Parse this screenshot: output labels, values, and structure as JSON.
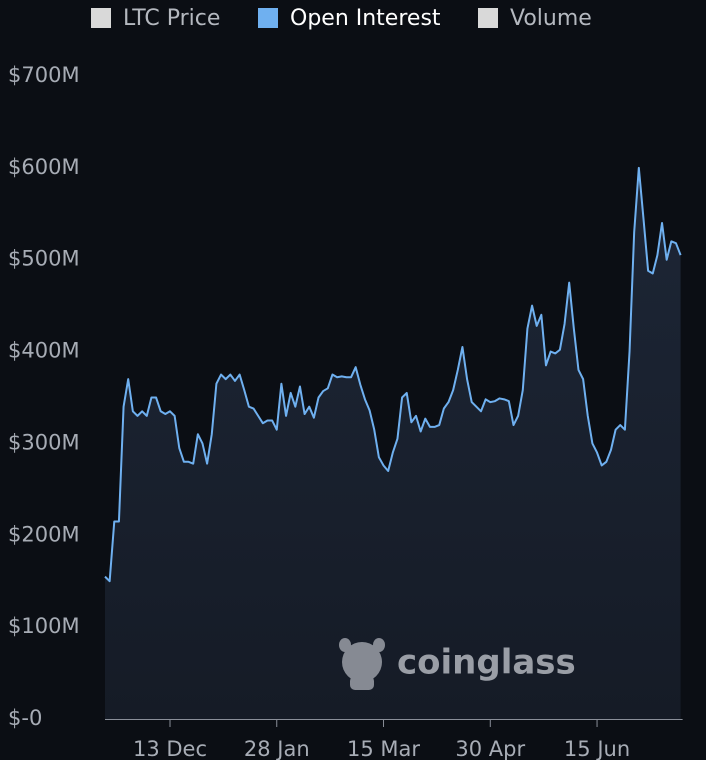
{
  "chart_data": {
    "type": "area",
    "watermark": "coinglass",
    "categories": [
      null,
      null,
      null,
      null,
      null,
      null,
      null,
      null,
      null,
      null,
      null,
      null,
      null,
      null,
      "13 Dec",
      null,
      null,
      null,
      null,
      null,
      null,
      null,
      null,
      null,
      null,
      null,
      null,
      null,
      null,
      null,
      null,
      null,
      null,
      null,
      null,
      null,
      null,
      "28 Jan",
      null,
      null,
      null,
      null,
      null,
      null,
      null,
      null,
      null,
      null,
      null,
      null,
      null,
      null,
      null,
      null,
      null,
      null,
      null,
      null,
      null,
      null,
      "15 Mar",
      null,
      null,
      null,
      null,
      null,
      null,
      null,
      null,
      null,
      null,
      null,
      null,
      null,
      null,
      null,
      null,
      null,
      null,
      null,
      null,
      null,
      null,
      "30 Apr",
      null,
      null,
      null,
      null,
      null,
      null,
      null,
      null,
      null,
      null,
      null,
      null,
      null,
      null,
      null,
      null,
      null,
      null,
      null,
      null,
      null,
      null,
      "15 Jun",
      null,
      null,
      null,
      null,
      null,
      null,
      null,
      null,
      null,
      null,
      null,
      null,
      null,
      null,
      null,
      null,
      null,
      null
    ],
    "series": [
      {
        "name": "LTC Price",
        "color": "#d9d9d9",
        "hidden": true
      },
      {
        "name": "Open Interest",
        "color": "#6fb0f0",
        "values": [
          155,
          150,
          215,
          215,
          340,
          370,
          335,
          330,
          335,
          330,
          350,
          350,
          335,
          332,
          335,
          330,
          295,
          280,
          280,
          278,
          310,
          300,
          278,
          310,
          365,
          375,
          370,
          375,
          368,
          375,
          358,
          340,
          338,
          330,
          322,
          325,
          325,
          315,
          365,
          330,
          355,
          340,
          362,
          332,
          340,
          328,
          350,
          357,
          360,
          375,
          372,
          373,
          372,
          372,
          383,
          364,
          348,
          336,
          315,
          285,
          276,
          270,
          290,
          305,
          350,
          355,
          323,
          330,
          313,
          327,
          318,
          318,
          320,
          338,
          345,
          358,
          380,
          405,
          370,
          345,
          340,
          335,
          348,
          345,
          346,
          349,
          348,
          346,
          320,
          330,
          358,
          425,
          450,
          428,
          440,
          385,
          400,
          398,
          402,
          430,
          475,
          425,
          380,
          370,
          330,
          300,
          290,
          276,
          280,
          293,
          315,
          320,
          315,
          400,
          530,
          600,
          545,
          488,
          485,
          505,
          540,
          500,
          520,
          518,
          505
        ]
      },
      {
        "name": "Volume",
        "color": "#d9d9d9",
        "hidden": true
      }
    ],
    "ylim": [
      0,
      700
    ],
    "yticks": [
      {
        "value": 0,
        "label": "$-0"
      },
      {
        "value": 100,
        "label": "$100M"
      },
      {
        "value": 200,
        "label": "$200M"
      },
      {
        "value": 300,
        "label": "$300M"
      },
      {
        "value": 400,
        "label": "$400M"
      },
      {
        "value": 500,
        "label": "$500M"
      },
      {
        "value": 600,
        "label": "$600M"
      },
      {
        "value": 700,
        "label": "$700M"
      }
    ]
  }
}
